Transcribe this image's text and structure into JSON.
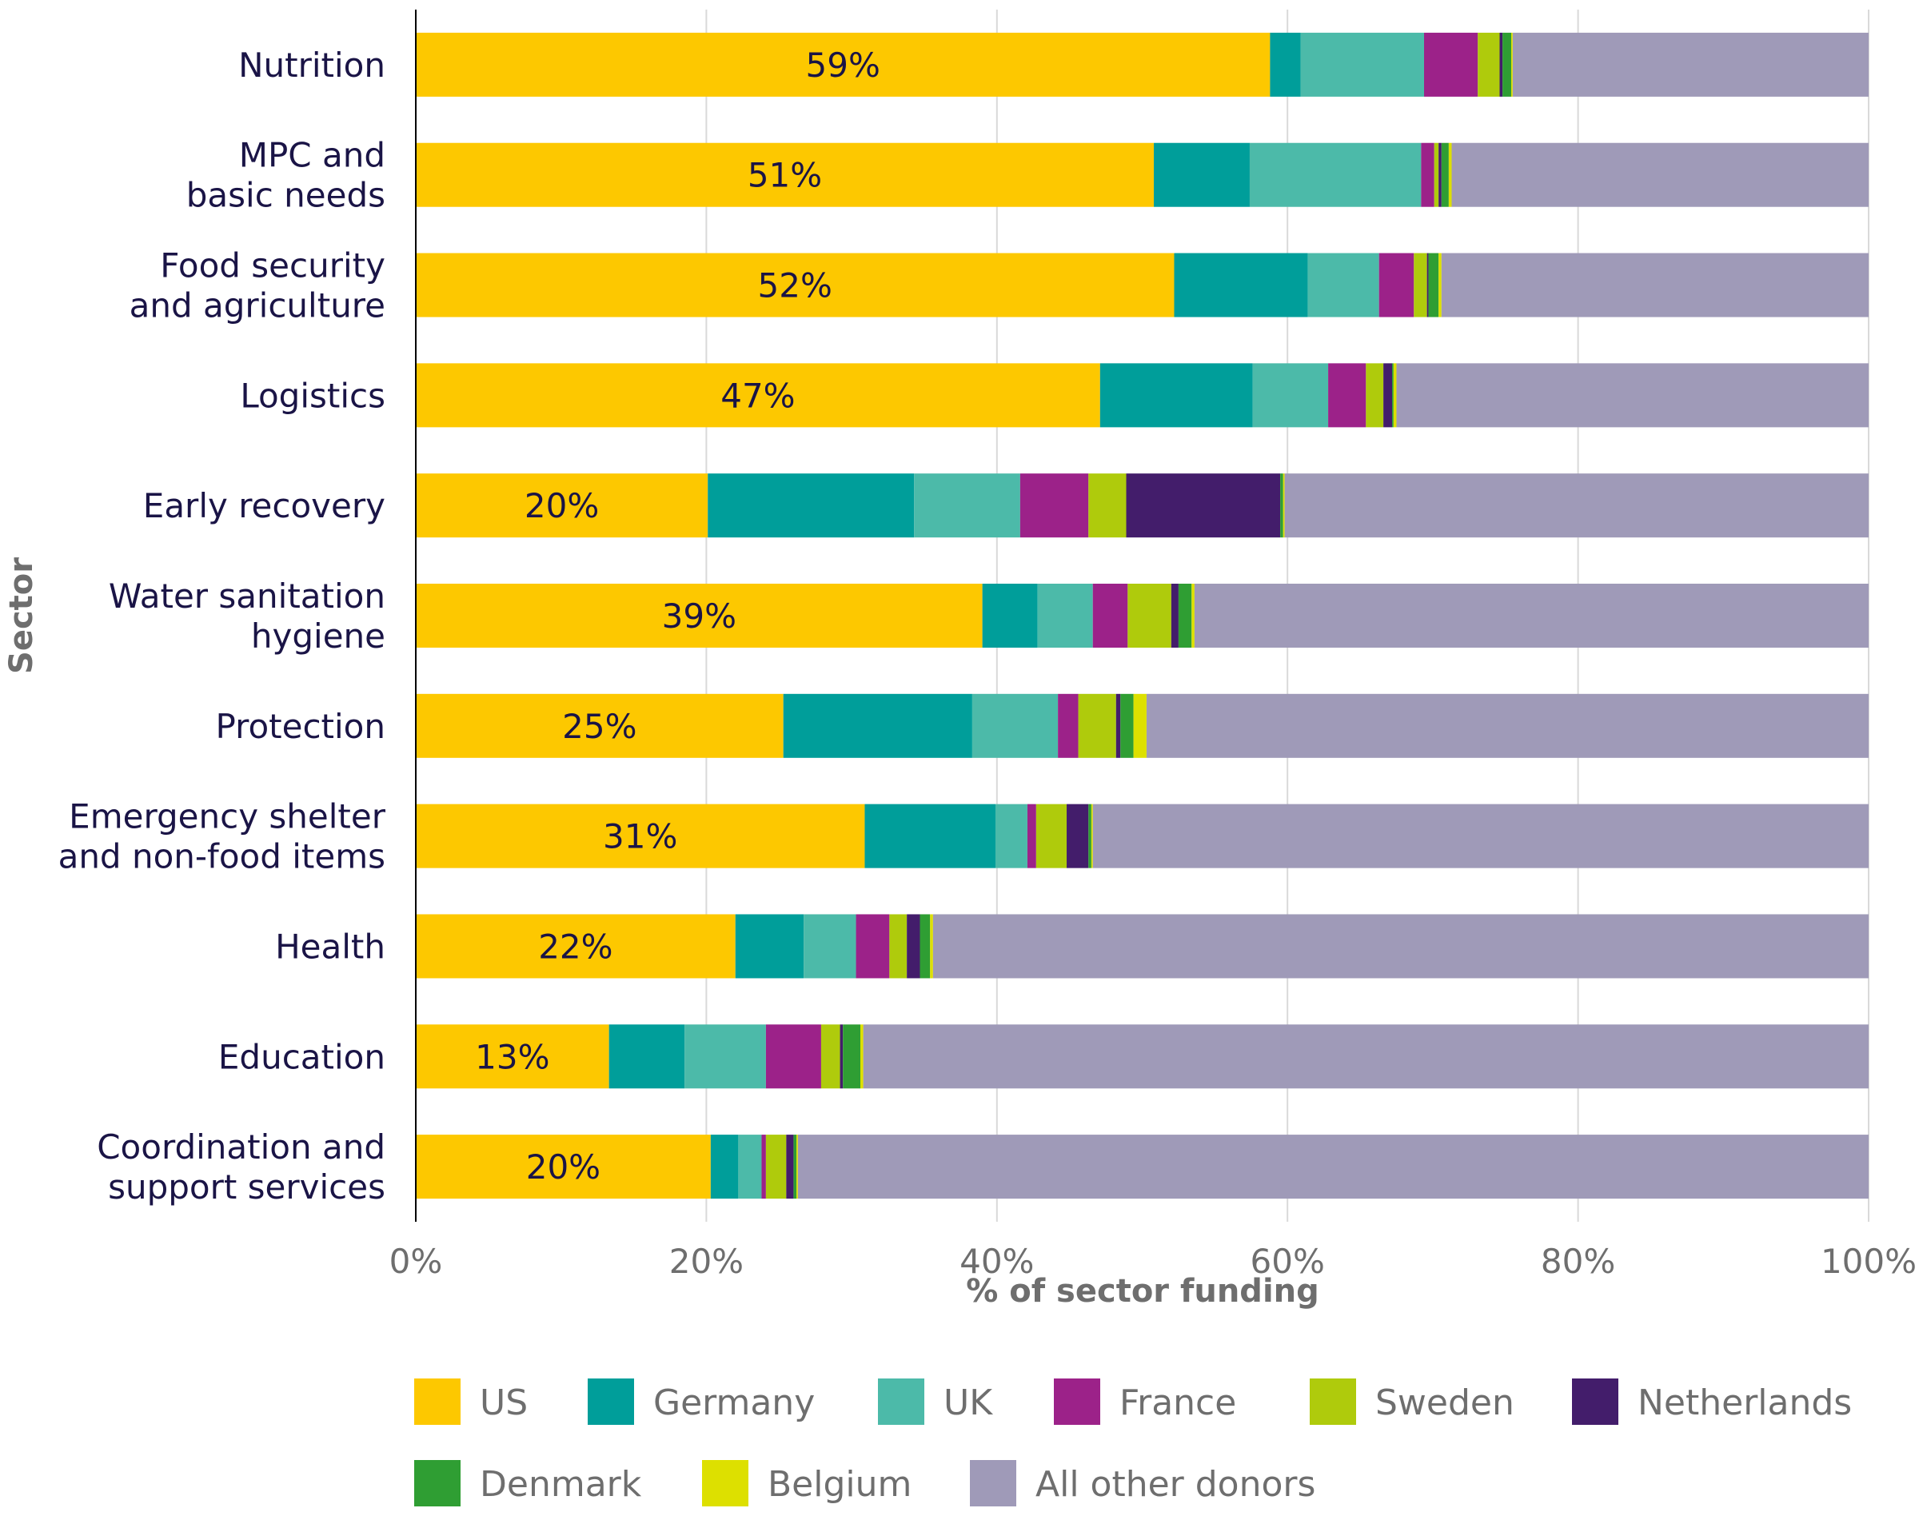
{
  "chart_data": {
    "type": "bar",
    "orientation": "horizontal",
    "stacked": true,
    "ylabel": "Sector",
    "xlabel": "% of sector funding",
    "xlim": [
      0,
      100
    ],
    "x_ticks": [
      "0%",
      "20%",
      "40%",
      "60%",
      "80%",
      "100%"
    ],
    "x_tick_values": [
      0,
      20,
      40,
      60,
      80,
      100
    ],
    "grid": "vertical",
    "legend_position": "bottom",
    "categories": [
      "Nutrition",
      "MPC and\nbasic needs",
      "Food security\nand agriculture",
      "Logistics",
      "Early recovery",
      "Water sanitation\nhygiene",
      "Protection",
      "Emergency shelter\nand non-food items",
      "Health",
      "Education",
      "Coordination and\nsupport services"
    ],
    "us_labels": [
      "59%",
      "51%",
      "52%",
      "47%",
      "20%",
      "39%",
      "25%",
      "31%",
      "22%",
      "13%",
      "20%"
    ],
    "series": [
      {
        "name": "US",
        "color": "#fdc800",
        "values": [
          58.8,
          50.8,
          52.2,
          47.1,
          20.1,
          39.0,
          25.3,
          30.9,
          22.0,
          13.3,
          20.3
        ]
      },
      {
        "name": "Germany",
        "color": "#009e9a",
        "values": [
          2.1,
          6.6,
          9.2,
          10.5,
          14.2,
          3.8,
          13.0,
          9.0,
          4.7,
          5.2,
          1.9
        ]
      },
      {
        "name": "UK",
        "color": "#4cbaa9",
        "values": [
          8.5,
          11.8,
          4.9,
          5.2,
          7.3,
          3.8,
          5.9,
          2.2,
          3.6,
          5.6,
          1.6
        ]
      },
      {
        "name": "France",
        "color": "#9c2289",
        "values": [
          3.7,
          0.9,
          2.4,
          2.6,
          4.7,
          2.4,
          1.4,
          0.6,
          2.3,
          3.8,
          0.3
        ]
      },
      {
        "name": "Sweden",
        "color": "#afcb0c",
        "values": [
          1.5,
          0.3,
          0.9,
          1.2,
          2.6,
          3.0,
          2.6,
          2.1,
          1.2,
          1.3,
          1.4
        ]
      },
      {
        "name": "Netherlands",
        "color": "#431d6b",
        "values": [
          0.2,
          0.2,
          0.1,
          0.6,
          10.6,
          0.5,
          0.3,
          1.5,
          0.9,
          0.2,
          0.5
        ]
      },
      {
        "name": "Denmark",
        "color": "#2f9e33",
        "values": [
          0.6,
          0.5,
          0.7,
          0.1,
          0.2,
          0.9,
          0.9,
          0.2,
          0.7,
          1.2,
          0.2
        ]
      },
      {
        "name": "Belgium",
        "color": "#dde000",
        "values": [
          0.1,
          0.2,
          0.2,
          0.2,
          0.1,
          0.2,
          0.9,
          0.1,
          0.2,
          0.2,
          0.1
        ]
      },
      {
        "name": "All other donors",
        "color": "#9f9ab8",
        "values": [
          24.5,
          28.7,
          29.4,
          32.5,
          40.2,
          46.4,
          49.7,
          53.4,
          64.4,
          69.2,
          73.7
        ]
      }
    ]
  }
}
